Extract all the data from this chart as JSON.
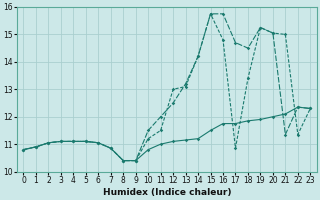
{
  "xlabel": "Humidex (Indice chaleur)",
  "background_color": "#cce8e8",
  "grid_color": "#aacfcf",
  "line_color": "#1a7a6e",
  "xlim": [
    -0.5,
    23.5
  ],
  "ylim": [
    10.0,
    16.0
  ],
  "xticks": [
    0,
    1,
    2,
    3,
    4,
    5,
    6,
    7,
    8,
    9,
    10,
    11,
    12,
    13,
    14,
    15,
    16,
    17,
    18,
    19,
    20,
    21,
    22,
    23
  ],
  "yticks": [
    10,
    11,
    12,
    13,
    14,
    15,
    16
  ],
  "curve1_x": [
    0,
    1,
    2,
    3,
    4,
    5,
    6,
    7,
    8,
    9,
    10,
    11,
    12,
    13,
    14,
    15,
    16,
    17,
    18,
    19,
    20,
    21,
    22,
    23
  ],
  "curve1_y": [
    10.8,
    10.9,
    11.05,
    11.1,
    11.1,
    11.1,
    11.05,
    10.85,
    10.4,
    10.4,
    10.8,
    11.0,
    11.1,
    11.15,
    11.2,
    11.5,
    11.75,
    11.75,
    11.85,
    11.9,
    12.0,
    12.1,
    12.35,
    12.3
  ],
  "curve2_x": [
    0,
    1,
    2,
    3,
    4,
    5,
    6,
    7,
    8,
    9,
    10,
    11,
    12,
    13,
    14,
    15,
    16,
    17,
    18,
    19,
    20,
    21,
    22,
    23
  ],
  "curve2_y": [
    10.8,
    10.9,
    11.05,
    11.1,
    11.1,
    11.1,
    11.05,
    10.85,
    10.4,
    10.4,
    11.2,
    11.5,
    13.0,
    13.1,
    14.2,
    15.75,
    14.8,
    10.85,
    13.4,
    15.25,
    15.05,
    15.0,
    11.35,
    12.3
  ],
  "curve3_x": [
    0,
    1,
    2,
    3,
    4,
    5,
    6,
    7,
    8,
    9,
    10,
    11,
    12,
    13,
    14,
    15,
    16,
    17,
    18,
    19,
    20,
    21,
    22,
    23
  ],
  "curve3_y": [
    10.8,
    10.9,
    11.05,
    11.1,
    11.1,
    11.1,
    11.05,
    10.85,
    10.4,
    10.4,
    11.5,
    12.0,
    12.5,
    13.2,
    14.2,
    15.75,
    15.75,
    14.7,
    14.5,
    15.25,
    15.05,
    11.35,
    12.35,
    12.3
  ]
}
